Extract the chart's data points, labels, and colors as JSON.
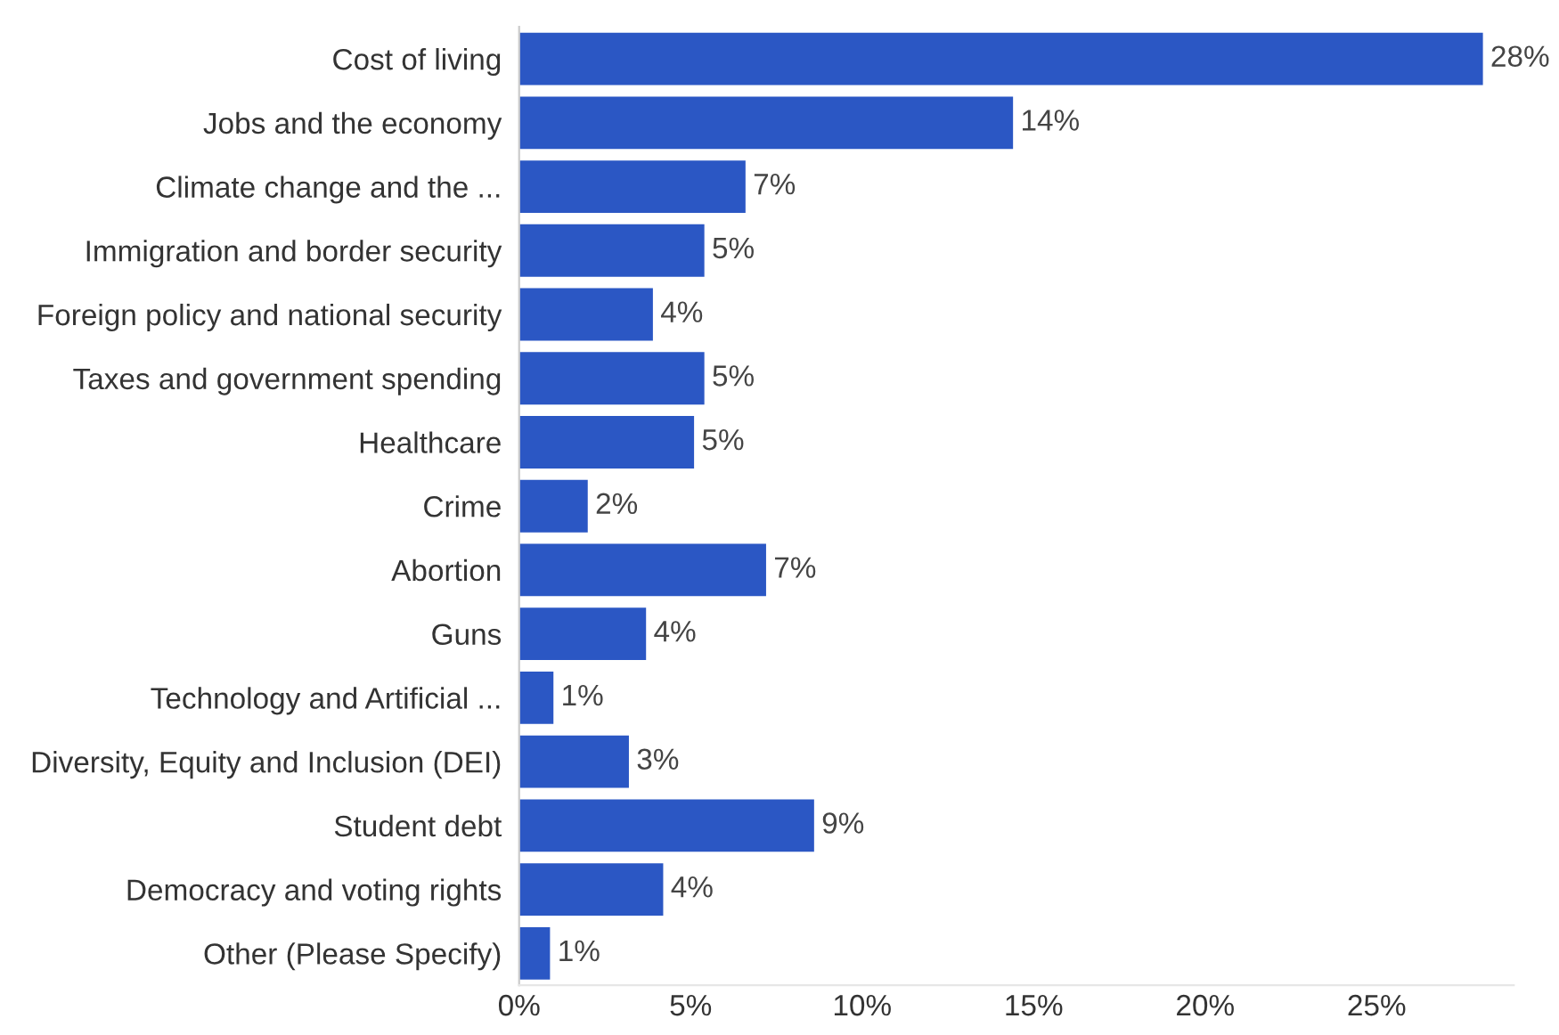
{
  "chart_data": {
    "type": "bar",
    "orientation": "horizontal",
    "categories": [
      "Cost of living",
      "Jobs and the economy",
      "Climate change and the ...",
      "Immigration and border security",
      "Foreign policy and national security",
      "Taxes and government spending",
      "Healthcare",
      "Crime",
      "Abortion",
      "Guns",
      "Technology and Artificial ...",
      "Diversity, Equity and Inclusion (DEI)",
      "Student debt",
      "Democracy and voting rights",
      "Other (Please Specify)"
    ],
    "values": [
      28.1,
      14.4,
      6.6,
      5.4,
      3.9,
      5.4,
      5.1,
      2.0,
      7.2,
      3.7,
      1.0,
      3.2,
      8.6,
      4.2,
      0.9
    ],
    "value_labels": [
      "28%",
      "14%",
      "7%",
      "5%",
      "4%",
      "5%",
      "5%",
      "2%",
      "7%",
      "4%",
      "1%",
      "3%",
      "9%",
      "4%",
      "1%"
    ],
    "color": "#2b57c4",
    "xlim": [
      0,
      29
    ],
    "xticks": [
      {
        "value": 0,
        "label": "0%"
      },
      {
        "value": 5,
        "label": "5%"
      },
      {
        "value": 10,
        "label": "10%"
      },
      {
        "value": 15,
        "label": "15%"
      },
      {
        "value": 20,
        "label": "20%"
      },
      {
        "value": 25,
        "label": "25%"
      }
    ],
    "grid": false,
    "legend": false
  }
}
